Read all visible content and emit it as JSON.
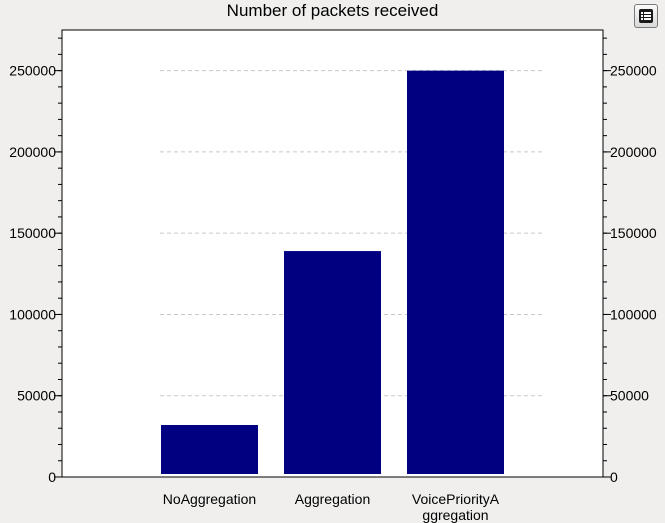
{
  "chart_data": {
    "type": "bar",
    "title": "Number of packets received",
    "categories": [
      "NoAggregation",
      "Aggregation",
      "VoicePriorityAggregation"
    ],
    "category_lines": [
      [
        "NoAggregation"
      ],
      [
        "Aggregation"
      ],
      [
        "VoicePriorityA",
        "ggregation"
      ]
    ],
    "values": [
      32000,
      139000,
      250000
    ],
    "ylim": [
      0,
      275000
    ],
    "yticks": [
      0,
      50000,
      100000,
      150000,
      200000,
      250000
    ],
    "xlabel": "",
    "ylabel": "",
    "grid": true,
    "legend": "none",
    "bar_color": "#000080"
  },
  "toolbar": {
    "menu_icon": "list-icon"
  }
}
